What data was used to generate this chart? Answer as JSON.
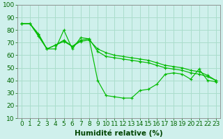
{
  "xlabel": "Humidité relative (%)",
  "bg_color": "#cff0ec",
  "grid_color": "#aaddcc",
  "line_color": "#00bb00",
  "xlim": [
    -0.5,
    23.5
  ],
  "ylim": [
    10,
    100
  ],
  "yticks": [
    10,
    20,
    30,
    40,
    50,
    60,
    70,
    80,
    90,
    100
  ],
  "xticks": [
    0,
    1,
    2,
    3,
    4,
    5,
    6,
    7,
    8,
    9,
    10,
    11,
    12,
    13,
    14,
    15,
    16,
    17,
    18,
    19,
    20,
    21,
    22,
    23
  ],
  "series": [
    [
      85,
      85,
      77,
      65,
      65,
      80,
      65,
      74,
      73,
      40,
      28,
      27,
      26,
      26,
      32,
      33,
      37,
      45,
      46,
      45,
      41,
      49,
      40,
      39
    ],
    [
      85,
      85,
      76,
      65,
      68,
      72,
      67,
      72,
      73,
      63,
      59,
      58,
      57,
      56,
      55,
      54,
      52,
      50,
      49,
      48,
      46,
      45,
      43,
      40
    ],
    [
      85,
      85,
      75,
      65,
      68,
      71,
      67,
      71,
      72,
      65,
      62,
      60,
      59,
      58,
      57,
      56,
      54,
      52,
      51,
      50,
      48,
      47,
      44,
      40
    ]
  ],
  "tick_fontsize": 6.5,
  "xlabel_fontsize": 7.5,
  "tick_color": "#006600",
  "xlabel_color": "#004400",
  "spine_color": "#888888"
}
